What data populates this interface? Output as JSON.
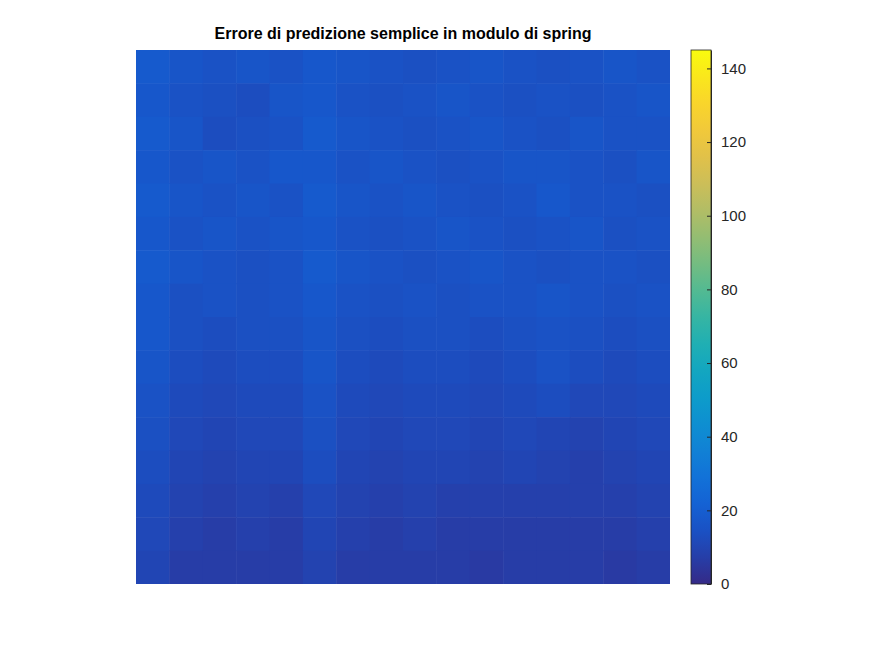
{
  "chart_data": {
    "type": "heatmap",
    "title": "Errore di predizione semplice in modulo di spring",
    "tick_labels": false,
    "cells": [
      [
        18,
        16,
        15,
        16,
        15,
        17,
        16,
        15,
        14,
        15,
        16,
        15,
        14,
        15,
        16,
        15
      ],
      [
        17,
        15,
        14,
        13,
        16,
        17,
        15,
        14,
        15,
        16,
        15,
        14,
        15,
        14,
        15,
        16
      ],
      [
        18,
        16,
        13,
        14,
        15,
        18,
        16,
        15,
        14,
        15,
        16,
        15,
        14,
        16,
        15,
        15
      ],
      [
        17,
        15,
        16,
        15,
        17,
        17,
        15,
        16,
        15,
        14,
        15,
        16,
        16,
        15,
        14,
        16
      ],
      [
        18,
        16,
        15,
        16,
        15,
        18,
        16,
        15,
        16,
        15,
        14,
        15,
        17,
        15,
        15,
        14
      ],
      [
        17,
        15,
        16,
        15,
        16,
        17,
        15,
        14,
        15,
        16,
        15,
        14,
        15,
        16,
        14,
        15
      ],
      [
        18,
        16,
        15,
        14,
        15,
        18,
        16,
        15,
        14,
        15,
        16,
        15,
        14,
        15,
        15,
        14
      ],
      [
        17,
        14,
        15,
        14,
        15,
        17,
        15,
        14,
        15,
        14,
        15,
        15,
        16,
        15,
        14,
        15
      ],
      [
        17,
        14,
        13,
        14,
        14,
        16,
        14,
        13,
        14,
        14,
        13,
        14,
        15,
        14,
        13,
        14
      ],
      [
        16,
        13,
        12,
        13,
        13,
        16,
        13,
        12,
        13,
        13,
        12,
        13,
        15,
        13,
        12,
        13
      ],
      [
        15,
        12,
        11,
        12,
        12,
        15,
        12,
        11,
        12,
        12,
        11,
        12,
        13,
        11,
        11,
        12
      ],
      [
        14,
        11,
        10,
        11,
        11,
        14,
        11,
        10,
        11,
        11,
        10,
        11,
        10,
        9,
        10,
        11
      ],
      [
        13,
        10,
        9,
        10,
        10,
        13,
        10,
        9,
        10,
        10,
        9,
        10,
        9,
        8,
        9,
        10
      ],
      [
        12,
        9,
        8,
        9,
        8,
        11,
        9,
        8,
        9,
        8,
        8,
        8,
        8,
        8,
        8,
        9
      ],
      [
        11,
        8,
        7,
        8,
        7,
        10,
        8,
        7,
        8,
        7,
        7,
        7,
        7,
        7,
        7,
        8
      ],
      [
        10,
        7,
        7,
        7,
        7,
        9,
        7,
        7,
        7,
        7,
        6,
        7,
        7,
        7,
        6,
        7
      ]
    ],
    "clim": [
      0,
      145
    ],
    "cticks": [
      0,
      20,
      40,
      60,
      80,
      100,
      120,
      140
    ]
  }
}
